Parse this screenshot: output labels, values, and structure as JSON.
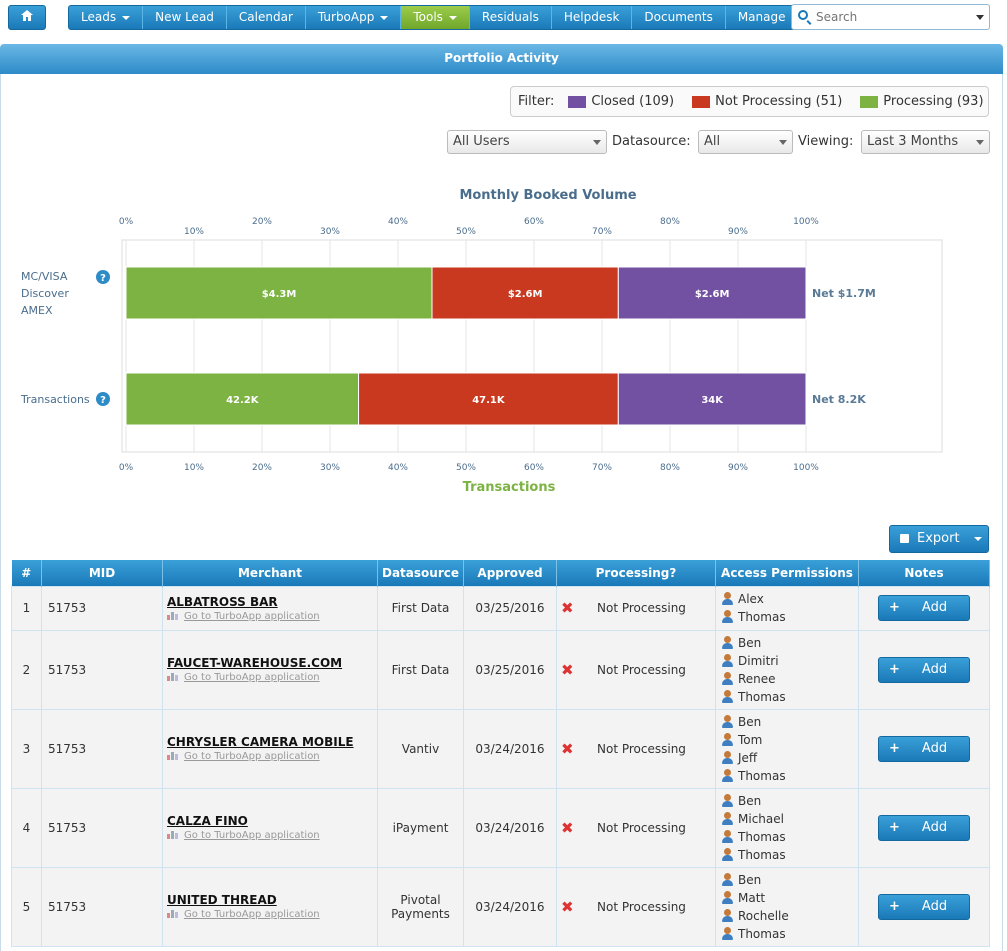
{
  "nav": {
    "home_icon": "home-icon",
    "items": [
      {
        "label": "Leads",
        "dropdown": true,
        "active": false
      },
      {
        "label": "New Lead",
        "dropdown": false,
        "active": false
      },
      {
        "label": "Calendar",
        "dropdown": false,
        "active": false
      },
      {
        "label": "TurboApp",
        "dropdown": true,
        "active": false
      },
      {
        "label": "Tools",
        "dropdown": true,
        "active": true
      },
      {
        "label": "Residuals",
        "dropdown": false,
        "active": false
      },
      {
        "label": "Helpdesk",
        "dropdown": false,
        "active": false
      },
      {
        "label": "Documents",
        "dropdown": false,
        "active": false
      },
      {
        "label": "Manage",
        "dropdown": true,
        "active": false
      }
    ],
    "search_placeholder": "Search"
  },
  "panel": {
    "title": "Portfolio Activity"
  },
  "filter": {
    "label": "Filter:",
    "items": [
      {
        "label": "Closed (109)",
        "color": "#7351a2"
      },
      {
        "label": "Not Processing (51)",
        "color": "#c9391f"
      },
      {
        "label": "Processing (93)",
        "color": "#7cb342"
      }
    ]
  },
  "controls": {
    "users_value": "All Users",
    "datasource_label": "Datasource:",
    "datasource_value": "All",
    "viewing_label": "Viewing:",
    "viewing_value": "Last 3 Months"
  },
  "chart_data": {
    "type": "bar",
    "orientation": "horizontal",
    "stacked": "percent",
    "title": "Monthly Booked Volume",
    "xlabel": "Transactions",
    "x_ticks": [
      "0%",
      "10%",
      "20%",
      "30%",
      "40%",
      "50%",
      "60%",
      "70%",
      "80%",
      "90%",
      "100%"
    ],
    "xlim": [
      0,
      100
    ],
    "grid": true,
    "categories": [
      "MC/VISA Discover AMEX",
      "Transactions"
    ],
    "category_lines": [
      [
        "MC/VISA",
        "Discover",
        "AMEX"
      ],
      [
        "Transactions"
      ]
    ],
    "series": [
      {
        "name": "Processing",
        "color": "#7cb342",
        "values": [
          45,
          34.2
        ],
        "labels": [
          "$4.3M",
          "42.2K"
        ]
      },
      {
        "name": "Not Processing",
        "color": "#c9391f",
        "values": [
          27.4,
          38.2
        ],
        "labels": [
          "$2.6M",
          "47.1K"
        ]
      },
      {
        "name": "Closed",
        "color": "#7351a2",
        "values": [
          27.6,
          27.6
        ],
        "labels": [
          "$2.6M",
          "34K"
        ]
      }
    ],
    "net_labels": [
      "Net $1.7M",
      "Net 8.2K"
    ]
  },
  "export": {
    "label": "Export"
  },
  "table": {
    "headers": [
      "#",
      "MID",
      "Merchant",
      "Datasource",
      "Approved",
      "Processing?",
      "Access Permissions",
      "Notes"
    ],
    "link_text": "Go to TurboApp application",
    "add_label": "Add",
    "rows": [
      {
        "num": "1",
        "mid": "51753",
        "merchant": "ALBATROSS BAR",
        "datasource": "First Data",
        "approved": "03/25/2016",
        "processing": "Not Processing",
        "users": [
          "Alex",
          "Thomas"
        ]
      },
      {
        "num": "2",
        "mid": "51753",
        "merchant": "FAUCET-WAREHOUSE.COM",
        "datasource": "First Data",
        "approved": "03/25/2016",
        "processing": "Not Processing",
        "users": [
          "Ben",
          "Dimitri",
          "Renee",
          "Thomas"
        ]
      },
      {
        "num": "3",
        "mid": "51753",
        "merchant": "CHRYSLER CAMERA MOBILE",
        "datasource": "Vantiv",
        "approved": "03/24/2016",
        "processing": "Not Processing",
        "users": [
          "Ben",
          "Tom",
          "Jeff",
          "Thomas"
        ]
      },
      {
        "num": "4",
        "mid": "51753",
        "merchant": "CALZA FINO",
        "datasource": "iPayment",
        "approved": "03/24/2016",
        "processing": "Not Processing",
        "users": [
          "Ben",
          "Michael",
          "Thomas",
          "Thomas"
        ]
      },
      {
        "num": "5",
        "mid": "51753",
        "merchant": "UNITED THREAD",
        "datasource": "Pivotal Payments",
        "approved": "03/24/2016",
        "processing": "Not Processing",
        "users": [
          "Ben",
          "Matt",
          "Rochelle",
          "Thomas"
        ]
      }
    ]
  }
}
